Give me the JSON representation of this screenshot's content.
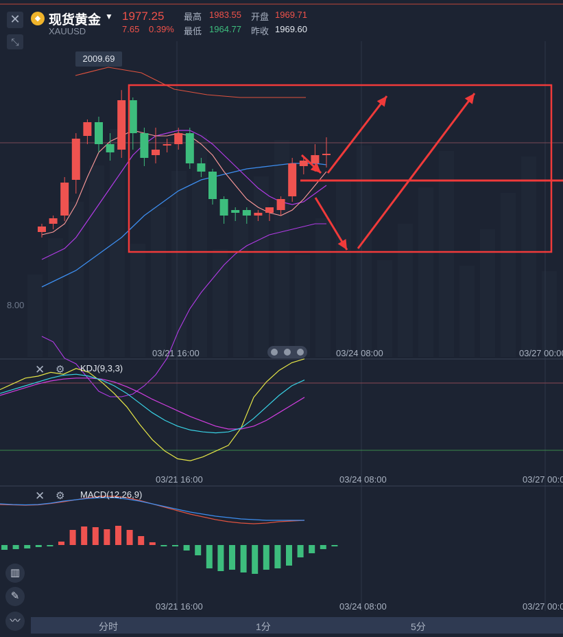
{
  "header": {
    "title": "现货黄金",
    "symbol": "XAUUSD",
    "price": "1977.25",
    "change": "7.65",
    "change_pct": "0.39%",
    "high_label": "最高",
    "high": "1983.55",
    "open_label": "开盘",
    "open": "1969.71",
    "low_label": "最低",
    "low": "1964.77",
    "prev_close_label": "昨收",
    "prev_close": "1969.60"
  },
  "price_tag": "2009.69",
  "y_fragment": "8.00",
  "x_axis_labels": [
    "03/21 16:00",
    "03/24 08:00",
    "03/27 00:00"
  ],
  "indicators": {
    "kdj": "KDJ(9,3,3)",
    "macd": "MACD(12,26,9)"
  },
  "timeframes": [
    "分时",
    "1分",
    "5分"
  ],
  "colors": {
    "up": "#ef5350",
    "down": "#3dbd7d",
    "background": "#1c2332",
    "annotation": "#f03a3a",
    "boll_upper": "#e0533f",
    "ma_pink": "#ff9b9b",
    "ma_purple": "#b13be6",
    "ma_blue": "#3d8ef0",
    "kdj_k": "#39d3e6",
    "kdj_d": "#d23ee0",
    "kdj_j": "#e6e647",
    "macd_dif": "#3d8ef0",
    "macd_dea": "#e0533f"
  },
  "chart_data": {
    "type": "candlestick",
    "candles": [
      {
        "o": 1958,
        "h": 1961,
        "l": 1956,
        "c": 1960
      },
      {
        "o": 1961,
        "h": 1964,
        "l": 1959,
        "c": 1963
      },
      {
        "o": 1964,
        "h": 1978,
        "l": 1962,
        "c": 1976
      },
      {
        "o": 1977,
        "h": 1994,
        "l": 1972,
        "c": 1992
      },
      {
        "o": 1993,
        "h": 1999,
        "l": 1990,
        "c": 1998
      },
      {
        "o": 1998,
        "h": 2000,
        "l": 1987,
        "c": 1990
      },
      {
        "o": 1990,
        "h": 1994,
        "l": 1984,
        "c": 1987
      },
      {
        "o": 1988,
        "h": 2009.69,
        "l": 1985,
        "c": 2006
      },
      {
        "o": 2006,
        "h": 2007,
        "l": 1988,
        "c": 1994
      },
      {
        "o": 1994,
        "h": 1996,
        "l": 1982,
        "c": 1985
      },
      {
        "o": 1986,
        "h": 1996,
        "l": 1983,
        "c": 1988
      },
      {
        "o": 1990,
        "h": 1992,
        "l": 1987,
        "c": 1990
      },
      {
        "o": 1990,
        "h": 1996,
        "l": 1988,
        "c": 1994
      },
      {
        "o": 1994,
        "h": 1996,
        "l": 1981,
        "c": 1983
      },
      {
        "o": 1983,
        "h": 1985,
        "l": 1978,
        "c": 1980
      },
      {
        "o": 1980,
        "h": 1981,
        "l": 1968,
        "c": 1970
      },
      {
        "o": 1970,
        "h": 1971,
        "l": 1961,
        "c": 1964
      },
      {
        "o": 1966,
        "h": 1967,
        "l": 1962,
        "c": 1965
      },
      {
        "o": 1966,
        "h": 1967,
        "l": 1961,
        "c": 1964
      },
      {
        "o": 1964,
        "h": 1966,
        "l": 1962,
        "c": 1965
      },
      {
        "o": 1965,
        "h": 1967,
        "l": 1962,
        "c": 1967
      },
      {
        "o": 1966,
        "h": 1971,
        "l": 1964,
        "c": 1970
      },
      {
        "o": 1971,
        "h": 1985,
        "l": 1969,
        "c": 1983
      },
      {
        "o": 1982,
        "h": 1985,
        "l": 1979,
        "c": 1984
      },
      {
        "o": 1983,
        "h": 1990,
        "l": 1980,
        "c": 1986
      },
      {
        "o": 1986,
        "h": 1992.5,
        "l": 1981.5,
        "c": 1986.5
      }
    ],
    "boll_upper": [
      2015,
      2018,
      2016,
      2010,
      2008,
      2007,
      2007,
      2007
    ],
    "ma_pink": [
      1957,
      1958,
      1961,
      1968,
      1978,
      1987,
      1991,
      1993,
      1995,
      1994,
      1993,
      1993,
      1994,
      1993,
      1990,
      1986,
      1980,
      1975,
      1970,
      1967,
      1965,
      1964,
      1966,
      1970,
      1975,
      1980
    ],
    "ma_purple": [
      1948,
      1950,
      1952,
      1956,
      1962,
      1968,
      1974,
      1980,
      1986,
      1990,
      1993,
      1994,
      1995,
      1995,
      1993,
      1990,
      1986,
      1982,
      1978,
      1974,
      1971,
      1969,
      1968,
      1969,
      1972,
      1975
    ],
    "ma_blue": [
      1938,
      1940,
      1942,
      1944,
      1947,
      1950,
      1953,
      1956,
      1960,
      1964,
      1967,
      1970,
      1973,
      1975,
      1977,
      1978,
      1979,
      1980,
      1981,
      1981.5,
      1982,
      1982.5,
      1983,
      1983,
      1983,
      1982.5
    ],
    "boll_lower": [
      1920,
      1918,
      1912,
      1910,
      1905,
      1900,
      1898,
      1898,
      1899,
      1902,
      1906,
      1912,
      1922,
      1930,
      1936,
      1941,
      1946,
      1950,
      1953,
      1955,
      1957,
      1958,
      1959,
      1960,
      1961,
      1961
    ],
    "kdj": {
      "k": [
        72,
        76,
        80,
        84,
        88,
        91,
        92,
        90,
        86,
        80,
        72,
        62,
        52,
        44,
        38,
        34,
        32,
        31,
        32,
        36,
        46,
        58,
        70,
        80,
        86
      ],
      "d": [
        70,
        74,
        78,
        82,
        85,
        87,
        88,
        88,
        87,
        84,
        79,
        73,
        66,
        60,
        54,
        48,
        43,
        38,
        35,
        35,
        38,
        44,
        52,
        60,
        68
      ],
      "j": [
        76,
        82,
        88,
        90,
        94,
        92,
        98,
        94,
        84,
        72,
        58,
        40,
        24,
        12,
        4,
        2,
        6,
        12,
        18,
        36,
        68,
        84,
        96,
        104,
        108
      ]
    },
    "macd": {
      "dif": [
        3.2,
        3.0,
        2.9,
        3.0,
        3.4,
        4.0,
        4.4,
        4.8,
        5.0,
        5.0,
        4.6,
        4.0,
        3.2,
        2.4,
        1.6,
        0.8,
        0.2,
        -0.4,
        -0.8,
        -1.2,
        -1.4,
        -1.6,
        -1.6,
        -1.6,
        -1.6
      ],
      "dea": [
        3.0,
        2.9,
        2.8,
        2.9,
        3.3,
        3.8,
        4.4,
        5.0,
        5.4,
        5.4,
        5.0,
        4.2,
        3.2,
        2.2,
        1.2,
        0.2,
        -0.6,
        -1.4,
        -2.0,
        -2.4,
        -2.6,
        -2.4,
        -2.0,
        -1.8,
        -1.6
      ],
      "hist": [
        -0.7,
        -0.6,
        -0.5,
        -0.3,
        -0.2,
        0.5,
        2.2,
        2.7,
        2.6,
        2.3,
        2.8,
        2.2,
        1.3,
        0.4,
        -0.1,
        -0.2,
        -0.8,
        -1.5,
        -3.4,
        -3.8,
        -3.6,
        -4.0,
        -4.2,
        -3.6,
        -3.4,
        -3.0,
        -1.8,
        -1.2,
        -0.6,
        -0.2
      ]
    }
  }
}
